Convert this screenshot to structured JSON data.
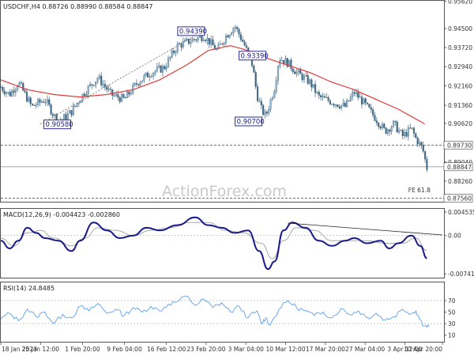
{
  "chart_data": [
    {
      "type": "candlestick",
      "title": "USDCHF,H4  0.88726 0.88990 0.88584 0.88847",
      "ylim": [
        0.8745,
        0.956
      ],
      "yticks": [
        "0.95620",
        "0.94500",
        "0.93720",
        "0.92940",
        "0.92160",
        "0.91360",
        "0.90620",
        "0.89040",
        "0.88260"
      ],
      "ytick_values": [
        0.9562,
        0.945,
        0.9372,
        0.9294,
        0.9216,
        0.9136,
        0.9062,
        0.8904,
        0.8826
      ],
      "levels": [
        {
          "label": "0.89730",
          "value": 0.8973,
          "style": "dashed"
        },
        {
          "label": "0.88847",
          "value": 0.88847,
          "style": "solid",
          "color": "#9a9a9a"
        },
        {
          "label": "0.87560",
          "value": 0.8756,
          "style": "dashed"
        }
      ],
      "annotations": [
        {
          "label": "0.94390",
          "x": 0.431,
          "y": 0.9439
        },
        {
          "label": "0.93390",
          "x": 0.57,
          "y": 0.9339
        },
        {
          "label": "0.90580",
          "x": 0.128,
          "y": 0.9058
        },
        {
          "label": "0.90700",
          "x": 0.561,
          "y": 0.907
        },
        {
          "label": "FE 61.8",
          "x": 0.962,
          "y": 0.878
        }
      ],
      "close_path": [
        [
          0.0,
          0.921
        ],
        [
          0.02,
          0.918
        ],
        [
          0.04,
          0.923
        ],
        [
          0.07,
          0.913
        ],
        [
          0.1,
          0.916
        ],
        [
          0.13,
          0.9065
        ],
        [
          0.16,
          0.911
        ],
        [
          0.19,
          0.919
        ],
        [
          0.22,
          0.925
        ],
        [
          0.25,
          0.918
        ],
        [
          0.28,
          0.916
        ],
        [
          0.31,
          0.923
        ],
        [
          0.34,
          0.927
        ],
        [
          0.37,
          0.929
        ],
        [
          0.4,
          0.938
        ],
        [
          0.43,
          0.94
        ],
        [
          0.46,
          0.942
        ],
        [
          0.49,
          0.936
        ],
        [
          0.51,
          0.942
        ],
        [
          0.53,
          0.946
        ],
        [
          0.55,
          0.939
        ],
        [
          0.57,
          0.93
        ],
        [
          0.58,
          0.918
        ],
        [
          0.59,
          0.912
        ],
        [
          0.6,
          0.909
        ],
        [
          0.62,
          0.921
        ],
        [
          0.63,
          0.933
        ],
        [
          0.65,
          0.931
        ],
        [
          0.67,
          0.927
        ],
        [
          0.7,
          0.923
        ],
        [
          0.72,
          0.917
        ],
        [
          0.75,
          0.915
        ],
        [
          0.78,
          0.913
        ],
        [
          0.8,
          0.919
        ],
        [
          0.82,
          0.915
        ],
        [
          0.85,
          0.908
        ],
        [
          0.87,
          0.903
        ],
        [
          0.89,
          0.906
        ],
        [
          0.91,
          0.901
        ],
        [
          0.93,
          0.904
        ],
        [
          0.94,
          0.9
        ],
        [
          0.955,
          0.896
        ],
        [
          0.965,
          0.888
        ]
      ],
      "ma_path": [
        [
          0.0,
          0.924
        ],
        [
          0.06,
          0.92
        ],
        [
          0.12,
          0.918
        ],
        [
          0.18,
          0.917
        ],
        [
          0.24,
          0.918
        ],
        [
          0.3,
          0.92
        ],
        [
          0.36,
          0.924
        ],
        [
          0.42,
          0.93
        ],
        [
          0.47,
          0.936
        ],
        [
          0.52,
          0.938
        ],
        [
          0.56,
          0.936
        ],
        [
          0.6,
          0.933
        ],
        [
          0.65,
          0.93
        ],
        [
          0.7,
          0.927
        ],
        [
          0.75,
          0.923
        ],
        [
          0.8,
          0.92
        ],
        [
          0.85,
          0.916
        ],
        [
          0.9,
          0.912
        ],
        [
          0.93,
          0.909
        ],
        [
          0.96,
          0.906
        ]
      ],
      "trendline": [
        [
          0.09,
          0.906
        ],
        [
          0.44,
          0.942
        ]
      ]
    },
    {
      "type": "line",
      "title": "MACD(12,26,9) -0.004423 -0.002860",
      "ylim": [
        -0.008,
        0.005
      ],
      "yticks": [
        "0.004535",
        "0.00",
        "-0.007417"
      ],
      "ytick_values": [
        0.004535,
        0.0,
        -0.007417
      ],
      "series": [
        {
          "values_path": [
            [
              0.0,
              -0.001
            ],
            [
              0.02,
              -0.0025
            ],
            [
              0.04,
              -0.001
            ],
            [
              0.06,
              0.0015
            ],
            [
              0.08,
              0.0005
            ],
            [
              0.1,
              -0.0005
            ],
            [
              0.13,
              -0.001
            ],
            [
              0.16,
              -0.003
            ],
            [
              0.18,
              -0.001
            ],
            [
              0.21,
              0.0025
            ],
            [
              0.24,
              0.001
            ],
            [
              0.27,
              -0.0005
            ],
            [
              0.3,
              0.0
            ],
            [
              0.33,
              0.0015
            ],
            [
              0.36,
              0.001
            ],
            [
              0.4,
              0.002
            ],
            [
              0.44,
              0.0035
            ],
            [
              0.47,
              0.002
            ],
            [
              0.5,
              0.0015
            ],
            [
              0.53,
              0.0005
            ],
            [
              0.56,
              0.001
            ],
            [
              0.585,
              -0.003
            ],
            [
              0.605,
              -0.0065
            ],
            [
              0.62,
              -0.005
            ],
            [
              0.64,
              0.001
            ],
            [
              0.66,
              0.0025
            ],
            [
              0.69,
              0.0015
            ],
            [
              0.72,
              -0.001
            ],
            [
              0.75,
              -0.002
            ],
            [
              0.78,
              -0.001
            ],
            [
              0.8,
              -0.0005
            ],
            [
              0.83,
              -0.0015
            ],
            [
              0.86,
              -0.001
            ],
            [
              0.88,
              -0.0025
            ],
            [
              0.9,
              -0.0015
            ],
            [
              0.93,
              0.0
            ],
            [
              0.95,
              -0.002
            ],
            [
              0.965,
              -0.0044
            ]
          ],
          "color": "#1a1a8a"
        },
        {
          "values_path": [
            [
              0.0,
              -0.0005
            ],
            [
              0.03,
              -0.002
            ],
            [
              0.06,
              0.0005
            ],
            [
              0.09,
              0.001
            ],
            [
              0.12,
              -0.0005
            ],
            [
              0.16,
              -0.002
            ],
            [
              0.19,
              -0.0005
            ],
            [
              0.22,
              0.0015
            ],
            [
              0.26,
              0.001
            ],
            [
              0.3,
              0.0
            ],
            [
              0.34,
              0.001
            ],
            [
              0.38,
              0.0015
            ],
            [
              0.43,
              0.0025
            ],
            [
              0.47,
              0.0025
            ],
            [
              0.51,
              0.001
            ],
            [
              0.55,
              0.0005
            ],
            [
              0.59,
              -0.0015
            ],
            [
              0.615,
              -0.0045
            ],
            [
              0.64,
              -0.001
            ],
            [
              0.67,
              0.0015
            ],
            [
              0.71,
              0.001
            ],
            [
              0.75,
              -0.001
            ],
            [
              0.79,
              -0.001
            ],
            [
              0.83,
              -0.001
            ],
            [
              0.87,
              -0.0015
            ],
            [
              0.91,
              -0.0015
            ],
            [
              0.94,
              -0.0005
            ],
            [
              0.965,
              -0.0029
            ]
          ],
          "color": "#aaaaaa"
        }
      ],
      "trendline": [
        [
          0.65,
          0.0024
        ],
        [
          1.0,
          0.0001
        ]
      ]
    },
    {
      "type": "line",
      "title": "RSI(14) 24.8485",
      "ylim": [
        0,
        100
      ],
      "yticks": [
        "70",
        "50",
        "30",
        "10"
      ],
      "ytick_values": [
        70,
        50,
        30,
        10
      ],
      "levels": [
        {
          "value": 70
        },
        {
          "value": 30
        }
      ],
      "series": [
        {
          "values_path": [
            [
              0.0,
              38
            ],
            [
              0.02,
              48
            ],
            [
              0.04,
              35
            ],
            [
              0.06,
              55
            ],
            [
              0.08,
              42
            ],
            [
              0.1,
              50
            ],
            [
              0.12,
              30
            ],
            [
              0.14,
              46
            ],
            [
              0.16,
              40
            ],
            [
              0.18,
              60
            ],
            [
              0.2,
              52
            ],
            [
              0.22,
              65
            ],
            [
              0.24,
              48
            ],
            [
              0.26,
              55
            ],
            [
              0.28,
              44
            ],
            [
              0.3,
              58
            ],
            [
              0.32,
              50
            ],
            [
              0.34,
              60
            ],
            [
              0.36,
              52
            ],
            [
              0.38,
              64
            ],
            [
              0.4,
              68
            ],
            [
              0.42,
              78
            ],
            [
              0.44,
              62
            ],
            [
              0.46,
              72
            ],
            [
              0.48,
              58
            ],
            [
              0.5,
              66
            ],
            [
              0.52,
              50
            ],
            [
              0.54,
              60
            ],
            [
              0.56,
              40
            ],
            [
              0.58,
              52
            ],
            [
              0.59,
              30
            ],
            [
              0.6,
              40
            ],
            [
              0.61,
              28
            ],
            [
              0.63,
              55
            ],
            [
              0.65,
              70
            ],
            [
              0.67,
              58
            ],
            [
              0.69,
              52
            ],
            [
              0.71,
              44
            ],
            [
              0.73,
              50
            ],
            [
              0.75,
              40
            ],
            [
              0.77,
              56
            ],
            [
              0.79,
              46
            ],
            [
              0.81,
              52
            ],
            [
              0.83,
              40
            ],
            [
              0.85,
              48
            ],
            [
              0.87,
              36
            ],
            [
              0.89,
              42
            ],
            [
              0.91,
              55
            ],
            [
              0.93,
              48
            ],
            [
              0.94,
              52
            ],
            [
              0.95,
              36
            ],
            [
              0.96,
              26
            ],
            [
              0.97,
              25
            ]
          ],
          "color": "#5aa0ee"
        }
      ]
    }
  ],
  "xaxis": {
    "labels": [
      "18 Jan 2023",
      "25 Jan 12:00",
      "1 Feb 20:00",
      "9 Feb 04:00",
      "16 Feb 12:00",
      "23 Feb 20:00",
      "3 Mar 04:00",
      "10 Mar 12:00",
      "17 Mar 20:00",
      "27 Mar 04:00",
      "3 Apr 12:00",
      "10 Apr 20:00"
    ],
    "positions": [
      0.0,
      0.09,
      0.185,
      0.28,
      0.375,
      0.465,
      0.555,
      0.645,
      0.735,
      0.825,
      0.915,
      1.0
    ]
  },
  "watermark": "ActionForex.com",
  "colors": {
    "candle_up": "#5f8aa8",
    "ma": "#e23a3a",
    "macd": "#1a1a8a",
    "signal": "#aaaaaa",
    "rsi": "#5aa0ee",
    "box": "#2a2a8a"
  }
}
